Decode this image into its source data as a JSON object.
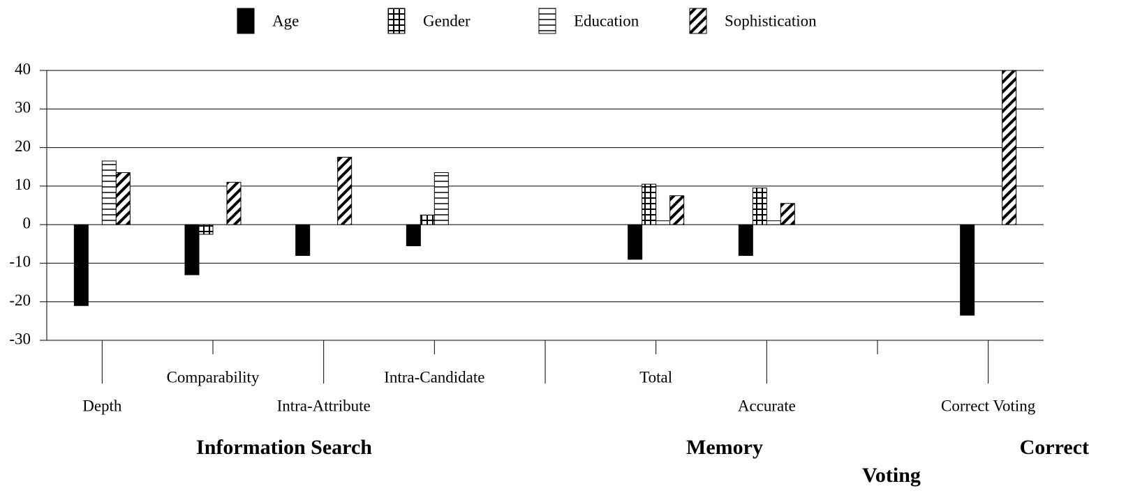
{
  "chart_data": {
    "type": "bar",
    "categories": [
      "Depth",
      "Comparability",
      "Intra-Attribute",
      "Intra-Candidate",
      null,
      "Total",
      "Accurate",
      null,
      "Correct Voting"
    ],
    "groups": [
      "Information Search",
      "Memory",
      "Correct Voting"
    ],
    "series": [
      {
        "name": "Age",
        "color": "#000000",
        "values": [
          -21,
          -13,
          -8,
          -5.5,
          null,
          -9,
          -8,
          null,
          -23.5
        ]
      },
      {
        "name": "Gender",
        "color": "#000000",
        "values": [
          0,
          -2.5,
          0,
          2.5,
          null,
          10.5,
          9.5,
          null,
          0
        ]
      },
      {
        "name": "Education",
        "color": "#000000",
        "values": [
          16.5,
          0,
          0,
          13.5,
          null,
          1,
          1,
          null,
          0
        ]
      },
      {
        "name": "Sophistication",
        "color": "#000000",
        "values": [
          13.5,
          11,
          17.5,
          0,
          null,
          7.5,
          5.5,
          null,
          40
        ]
      }
    ],
    "ylim": [
      -30,
      40
    ],
    "yticks": [
      -30,
      -20,
      -10,
      0,
      10,
      20,
      30,
      40
    ],
    "grid": true,
    "legend": "top"
  }
}
